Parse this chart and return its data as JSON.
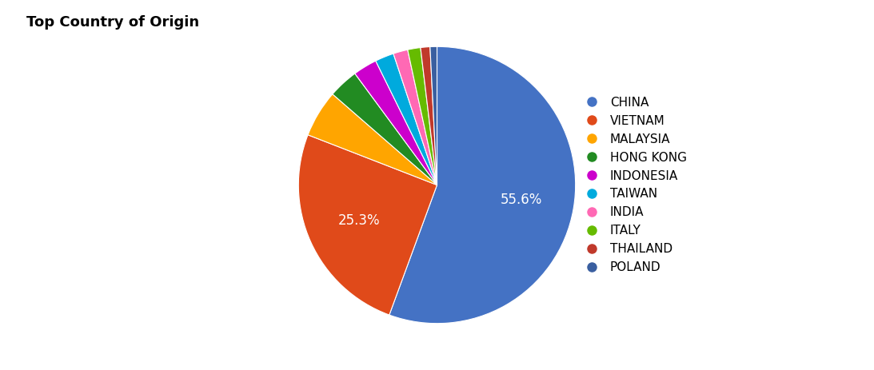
{
  "title": "Top Country of Origin",
  "title_fontsize": 13,
  "title_fontweight": "bold",
  "labels": [
    "CHINA",
    "VIETNAM",
    "MALAYSIA",
    "HONG KONG",
    "INDONESIA",
    "TAIWAN",
    "INDIA",
    "ITALY",
    "THAILAND",
    "POLAND"
  ],
  "values": [
    55.6,
    25.3,
    5.5,
    3.5,
    2.8,
    2.2,
    1.7,
    1.5,
    1.1,
    0.8
  ],
  "colors": [
    "#4472C4",
    "#E04A1A",
    "#FFA500",
    "#228B22",
    "#CC00CC",
    "#00AADD",
    "#FF69B4",
    "#66BB00",
    "#C0392B",
    "#3A5FA0"
  ],
  "autopct_indices": [
    0,
    1
  ],
  "autopct_texts": [
    "55.6%",
    "25.3%"
  ],
  "legend_fontsize": 11,
  "legend_marker_size": 10,
  "background_color": "#ffffff"
}
